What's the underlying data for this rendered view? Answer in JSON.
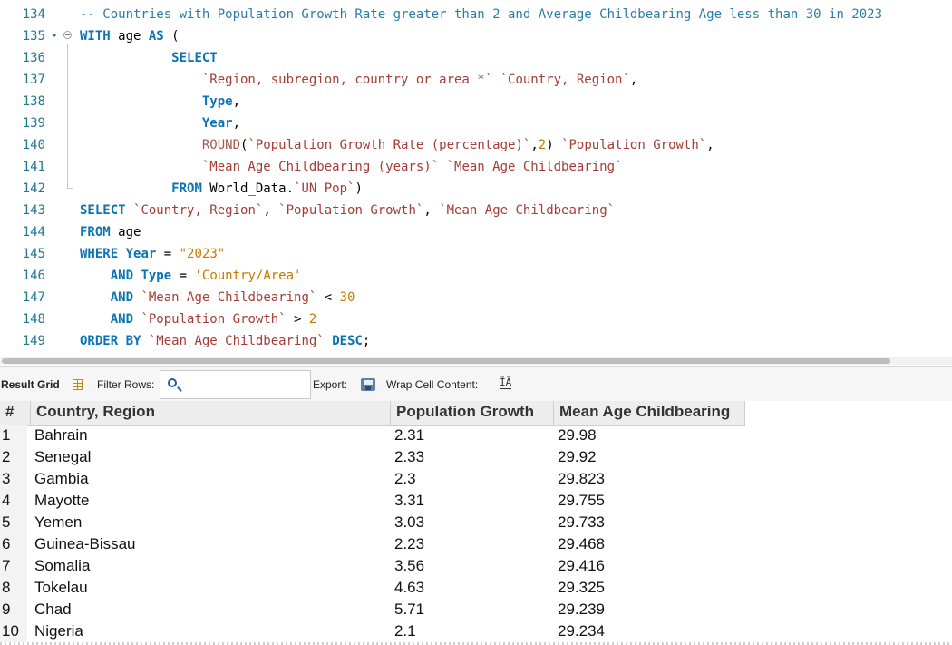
{
  "editor": {
    "lines": [
      {
        "num": "134",
        "marker": "",
        "fold": false,
        "tokens": [
          [
            "cm",
            "-- Countries with Population Growth Rate greater than 2 and Average Childbearing Age less than 30 in 2023"
          ]
        ]
      },
      {
        "num": "135",
        "marker": "•",
        "fold": true,
        "tokens": [
          [
            "kw",
            "WITH"
          ],
          [
            "op",
            " age "
          ],
          [
            "kw",
            "AS"
          ],
          [
            "op",
            " ("
          ]
        ]
      },
      {
        "num": "136",
        "marker": "",
        "fold": false,
        "tokens": [
          [
            "op",
            "            "
          ],
          [
            "kw",
            "SELECT"
          ]
        ]
      },
      {
        "num": "137",
        "marker": "",
        "fold": false,
        "tokens": [
          [
            "op",
            "                "
          ],
          [
            "id",
            "`Region, subregion, country or area *`"
          ],
          [
            "op",
            " "
          ],
          [
            "id",
            "`Country, Region`"
          ],
          [
            "op",
            ","
          ]
        ]
      },
      {
        "num": "138",
        "marker": "",
        "fold": false,
        "tokens": [
          [
            "op",
            "                "
          ],
          [
            "kw",
            "Type"
          ],
          [
            "op",
            ","
          ]
        ]
      },
      {
        "num": "139",
        "marker": "",
        "fold": false,
        "tokens": [
          [
            "op",
            "                "
          ],
          [
            "kw",
            "Year"
          ],
          [
            "op",
            ","
          ]
        ]
      },
      {
        "num": "140",
        "marker": "",
        "fold": false,
        "tokens": [
          [
            "op",
            "                "
          ],
          [
            "fn",
            "ROUND"
          ],
          [
            "op",
            "("
          ],
          [
            "id",
            "`Population Growth Rate (percentage)`"
          ],
          [
            "op",
            ","
          ],
          [
            "num",
            "2"
          ],
          [
            "op",
            ") "
          ],
          [
            "id",
            "`Population Growth`"
          ],
          [
            "op",
            ","
          ]
        ]
      },
      {
        "num": "141",
        "marker": "",
        "fold": false,
        "tokens": [
          [
            "op",
            "                "
          ],
          [
            "id",
            "`Mean Age Childbearing (years)`"
          ],
          [
            "op",
            " "
          ],
          [
            "id",
            "`Mean Age Childbearing`"
          ]
        ]
      },
      {
        "num": "142",
        "marker": "",
        "fold": false,
        "tokens": [
          [
            "op",
            "            "
          ],
          [
            "kw",
            "FROM"
          ],
          [
            "op",
            " World_Data."
          ],
          [
            "id",
            "`UN Pop`"
          ],
          [
            "op",
            ")"
          ]
        ]
      },
      {
        "num": "143",
        "marker": "",
        "fold": false,
        "tokens": [
          [
            "kw",
            "SELECT"
          ],
          [
            "op",
            " "
          ],
          [
            "id",
            "`Country, Region`"
          ],
          [
            "op",
            ", "
          ],
          [
            "id",
            "`Population Growth`"
          ],
          [
            "op",
            ", "
          ],
          [
            "id",
            "`Mean Age Childbearing`"
          ]
        ]
      },
      {
        "num": "144",
        "marker": "",
        "fold": false,
        "tokens": [
          [
            "kw",
            "FROM"
          ],
          [
            "op",
            " age"
          ]
        ]
      },
      {
        "num": "145",
        "marker": "",
        "fold": false,
        "tokens": [
          [
            "kw",
            "WHERE"
          ],
          [
            "op",
            " "
          ],
          [
            "kw",
            "Year"
          ],
          [
            "op",
            " = "
          ],
          [
            "str",
            "\"2023\""
          ]
        ]
      },
      {
        "num": "146",
        "marker": "",
        "fold": false,
        "tokens": [
          [
            "op",
            "    "
          ],
          [
            "kw",
            "AND"
          ],
          [
            "op",
            " "
          ],
          [
            "kw",
            "Type"
          ],
          [
            "op",
            " = "
          ],
          [
            "str",
            "'Country/Area'"
          ]
        ]
      },
      {
        "num": "147",
        "marker": "",
        "fold": false,
        "tokens": [
          [
            "op",
            "    "
          ],
          [
            "kw",
            "AND"
          ],
          [
            "op",
            " "
          ],
          [
            "id",
            "`Mean Age Childbearing`"
          ],
          [
            "op",
            " < "
          ],
          [
            "num",
            "30"
          ]
        ]
      },
      {
        "num": "148",
        "marker": "",
        "fold": false,
        "tokens": [
          [
            "op",
            "    "
          ],
          [
            "kw",
            "AND"
          ],
          [
            "op",
            " "
          ],
          [
            "id",
            "`Population Growth`"
          ],
          [
            "op",
            " > "
          ],
          [
            "num",
            "2"
          ]
        ]
      },
      {
        "num": "149",
        "marker": "",
        "fold": false,
        "tokens": [
          [
            "kw",
            "ORDER BY"
          ],
          [
            "op",
            " "
          ],
          [
            "id",
            "`Mean Age Childbearing`"
          ],
          [
            "op",
            " "
          ],
          [
            "kw",
            "DESC"
          ],
          [
            "op",
            ";"
          ]
        ]
      }
    ]
  },
  "toolbar": {
    "result_grid_label": "Result Grid",
    "filter_rows_label": "Filter Rows:",
    "filter_value": "",
    "export_label": "Export:",
    "wrap_label": "Wrap Cell Content:",
    "wrap_icon_glyph": "ĪĀ"
  },
  "grid": {
    "columns": [
      "#",
      "Country, Region",
      "Population Growth",
      "Mean Age Childbearing"
    ],
    "rows": [
      [
        "1",
        "Bahrain",
        "2.31",
        "29.98"
      ],
      [
        "2",
        "Senegal",
        "2.33",
        "29.92"
      ],
      [
        "3",
        "Gambia",
        "2.3",
        "29.823"
      ],
      [
        "4",
        "Mayotte",
        "3.31",
        "29.755"
      ],
      [
        "5",
        "Yemen",
        "3.03",
        "29.733"
      ],
      [
        "6",
        "Guinea-Bissau",
        "2.23",
        "29.468"
      ],
      [
        "7",
        "Somalia",
        "3.56",
        "29.416"
      ],
      [
        "8",
        "Tokelau",
        "4.63",
        "29.325"
      ],
      [
        "9",
        "Chad",
        "5.71",
        "29.239"
      ],
      [
        "10",
        "Nigeria",
        "2.1",
        "29.234"
      ]
    ]
  },
  "colors": {
    "keyword": "#0b73b3",
    "comment": "#2a7ca6",
    "identifier": "#a33d36",
    "number": "#c97800",
    "line_number": "#237893"
  }
}
